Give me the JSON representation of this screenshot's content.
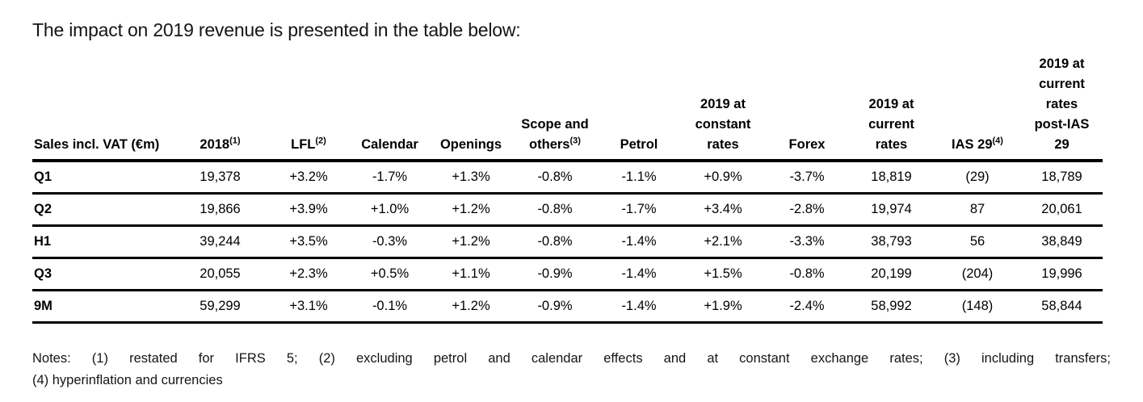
{
  "title": "The impact on 2019 revenue is presented in the table below:",
  "table": {
    "columns": [
      {
        "key": "sales-incl-vat",
        "lines": [
          "Sales incl. VAT (€m)"
        ],
        "sup": "",
        "align": "left"
      },
      {
        "key": "2018",
        "lines": [
          "2018"
        ],
        "sup": "(1)",
        "align": "center"
      },
      {
        "key": "lfl",
        "lines": [
          "LFL"
        ],
        "sup": "(2)",
        "align": "center"
      },
      {
        "key": "calendar",
        "lines": [
          "Calendar"
        ],
        "sup": "",
        "align": "center"
      },
      {
        "key": "openings",
        "lines": [
          "Openings"
        ],
        "sup": "",
        "align": "center"
      },
      {
        "key": "scope-and-others",
        "lines": [
          "Scope and",
          "others"
        ],
        "sup": "(3)",
        "align": "center"
      },
      {
        "key": "petrol",
        "lines": [
          "Petrol"
        ],
        "sup": "",
        "align": "center"
      },
      {
        "key": "2019-constant-rates",
        "lines": [
          "2019 at",
          "constant",
          "rates"
        ],
        "sup": "",
        "align": "center"
      },
      {
        "key": "forex",
        "lines": [
          "Forex"
        ],
        "sup": "",
        "align": "center"
      },
      {
        "key": "2019-current-rates",
        "lines": [
          "2019 at",
          "current",
          "rates"
        ],
        "sup": "",
        "align": "center"
      },
      {
        "key": "ias-29",
        "lines": [
          "IAS 29"
        ],
        "sup": "(4)",
        "align": "center"
      },
      {
        "key": "2019-current-rates-post-ias-29",
        "lines": [
          "2019 at",
          "current",
          "rates",
          "post-IAS",
          "29"
        ],
        "sup": "",
        "align": "center"
      }
    ],
    "rows": [
      {
        "label": "Q1",
        "values": [
          "19,378",
          "+3.2%",
          "-1.7%",
          "+1.3%",
          "-0.8%",
          "-1.1%",
          "+0.9%",
          "-3.7%",
          "18,819",
          "(29)",
          "18,789"
        ]
      },
      {
        "label": "Q2",
        "values": [
          "19,866",
          "+3.9%",
          "+1.0%",
          "+1.2%",
          "-0.8%",
          "-1.7%",
          "+3.4%",
          "-2.8%",
          "19,974",
          "87",
          "20,061"
        ]
      },
      {
        "label": "H1",
        "values": [
          "39,244",
          "+3.5%",
          "-0.3%",
          "+1.2%",
          "-0.8%",
          "-1.4%",
          "+2.1%",
          "-3.3%",
          "38,793",
          "56",
          "38,849"
        ]
      },
      {
        "label": "Q3",
        "values": [
          "20,055",
          "+2.3%",
          "+0.5%",
          "+1.1%",
          "-0.9%",
          "-1.4%",
          "+1.5%",
          "-0.8%",
          "20,199",
          "(204)",
          "19,996"
        ]
      },
      {
        "label": "9M",
        "values": [
          "59,299",
          "+3.1%",
          "-0.1%",
          "+1.2%",
          "-0.9%",
          "-1.4%",
          "+1.9%",
          "-2.4%",
          "58,992",
          "(148)",
          "58,844"
        ]
      }
    ]
  },
  "notes": {
    "line1": "Notes: (1) restated for IFRS 5; (2) excluding petrol and calendar effects and at constant exchange rates; (3) including transfers;",
    "line2": "(4) hyperinflation and currencies"
  }
}
